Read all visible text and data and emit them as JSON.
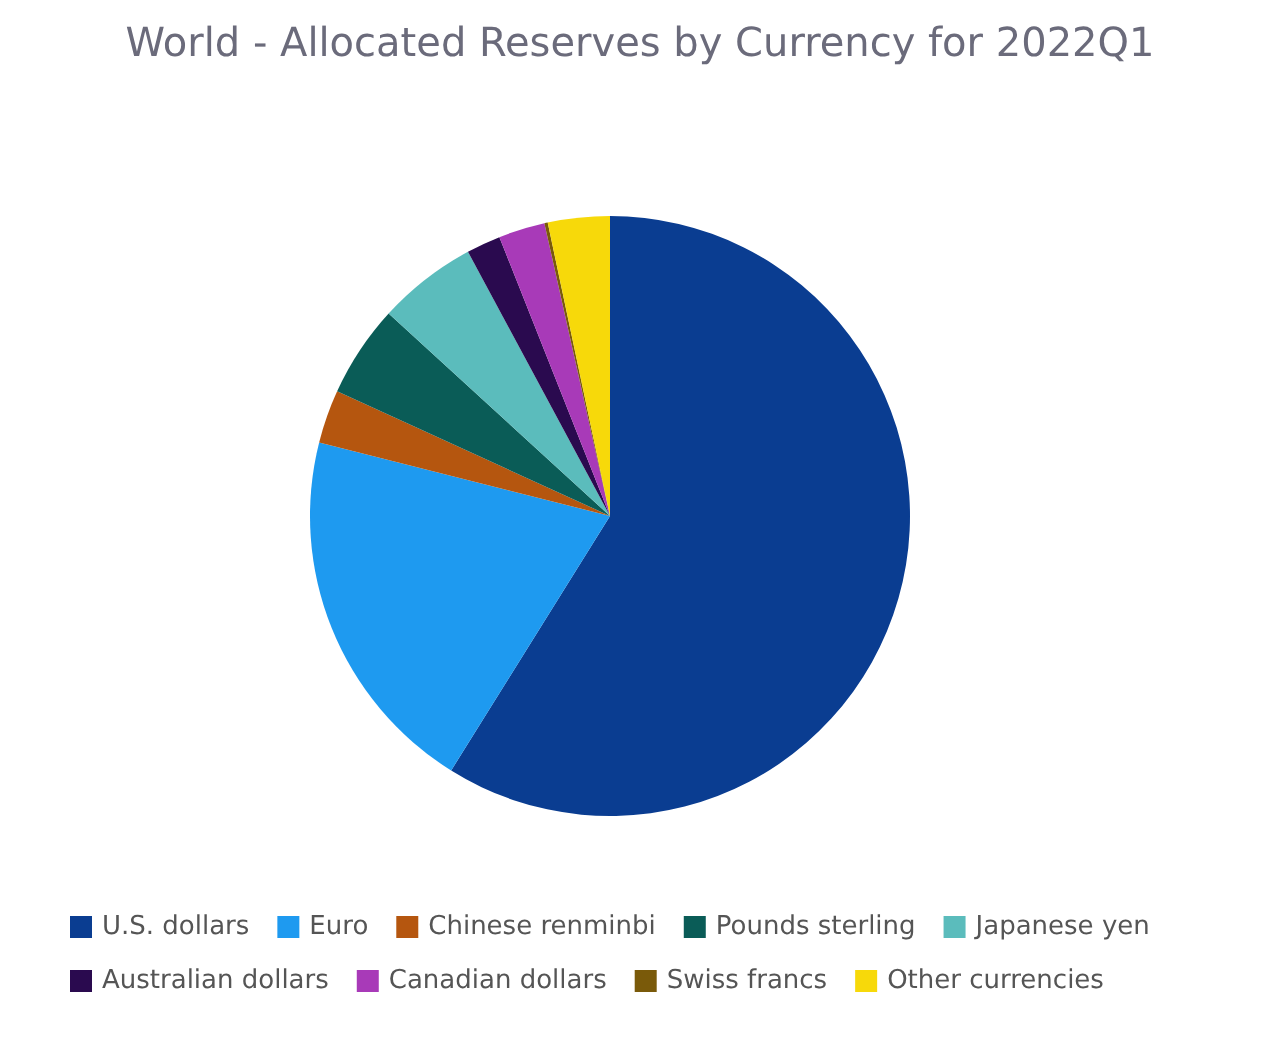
{
  "chart_data": {
    "type": "pie",
    "title": "World - Allocated Reserves by Currency for 2022Q1",
    "categories": [
      "U.S. dollars",
      "Euro",
      "Chinese renminbi",
      "Pounds sterling",
      "Japanese yen",
      "Australian dollars",
      "Canadian dollars",
      "Swiss francs",
      "Other currencies"
    ],
    "values": [
      58.88,
      20.06,
      2.88,
      4.97,
      5.36,
      1.84,
      2.5,
      0.18,
      3.33
    ],
    "colors": [
      "#0a3d91",
      "#1e9af0",
      "#b5560f",
      "#0a5c57",
      "#5bbcbc",
      "#2a0a4f",
      "#a83ab8",
      "#7a5a0a",
      "#f7d90a"
    ],
    "legend": "bottom"
  }
}
